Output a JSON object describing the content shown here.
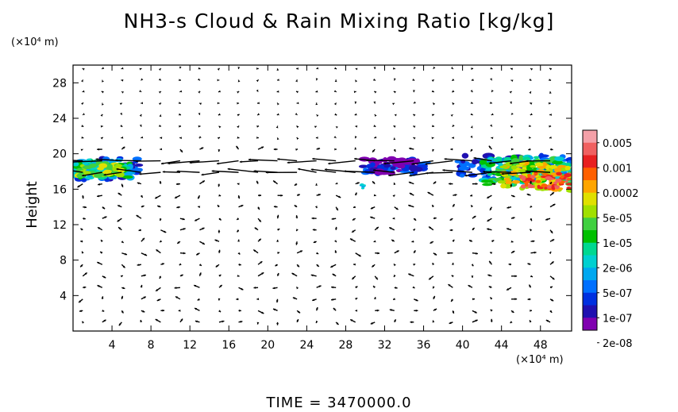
{
  "title": "NH3-s Cloud & Rain Mixing Ratio [kg/kg]",
  "y_unit": "(×10⁴ m)",
  "x_unit": "(×10⁴ m)",
  "time_label": "TIME  =  3470000.0",
  "chart_data": {
    "type": "heatmap",
    "title": "NH3-s Cloud & Rain Mixing Ratio [kg/kg]",
    "xlabel": "",
    "ylabel": "Height",
    "x_unit": "(×10⁴ m)",
    "y_unit": "(×10⁴ m)",
    "xlim": [
      0,
      51.2
    ],
    "ylim": [
      0,
      30
    ],
    "x_ticks": [
      4,
      8,
      12,
      16,
      20,
      24,
      28,
      32,
      36,
      40,
      44,
      48
    ],
    "y_ticks": [
      4,
      8,
      12,
      16,
      20,
      24,
      28
    ],
    "colorbar": {
      "labels": [
        "0.005",
        "0.001",
        "0.0002",
        "5e-05",
        "1e-05",
        "2e-06",
        "5e-07",
        "1e-07",
        "2e-08"
      ],
      "colors": [
        "#f4a0a8",
        "#f06060",
        "#e82020",
        "#ff6000",
        "#ffa500",
        "#e0e000",
        "#a0e000",
        "#40d040",
        "#00c000",
        "#00d890",
        "#00d0d0",
        "#00a8f0",
        "#0070ff",
        "#0030e0",
        "#2010b0",
        "#8000b0"
      ]
    },
    "cloud_regions": [
      {
        "x_range": [
          0,
          7.5
        ],
        "y_range": [
          16.8,
          20
        ],
        "max_value": "5e-05"
      },
      {
        "x_range": [
          29.5,
          36.5
        ],
        "y_range": [
          17.5,
          19.5
        ],
        "max_value": "1e-07"
      },
      {
        "x_range": [
          39,
          51.2
        ],
        "y_range": [
          15.5,
          20
        ],
        "max_value": "0.001"
      }
    ],
    "wind_vectors": true,
    "grid": false
  }
}
